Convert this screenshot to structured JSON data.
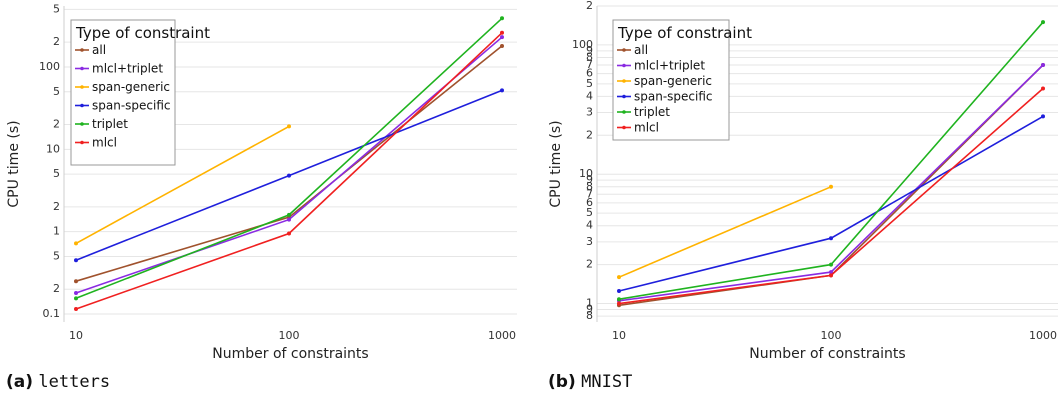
{
  "figure": {
    "caption_a_label": "(a)",
    "caption_a_name": "letters",
    "caption_b_label": "(b)",
    "caption_b_name": "MNIST"
  },
  "chart_data": [
    {
      "type": "line",
      "panel": "a",
      "xscale": "log",
      "yscale": "log",
      "xlabel": "Number of constraints",
      "ylabel": "CPU time (s)",
      "x": [
        10,
        100,
        1000
      ],
      "xticks": [
        "10",
        "100",
        "1000"
      ],
      "ylim": [
        0.08,
        550
      ],
      "yticks": [
        {
          "v": 0.1,
          "l": "0.1"
        },
        {
          "v": 0.2,
          "l": "2"
        },
        {
          "v": 0.5,
          "l": "5"
        },
        {
          "v": 1,
          "l": "1"
        },
        {
          "v": 2,
          "l": "2"
        },
        {
          "v": 5,
          "l": "5"
        },
        {
          "v": 10,
          "l": "10"
        },
        {
          "v": 20,
          "l": "2"
        },
        {
          "v": 50,
          "l": "5"
        },
        {
          "v": 100,
          "l": "100"
        },
        {
          "v": 200,
          "l": "2"
        },
        {
          "v": 500,
          "l": "5"
        }
      ],
      "legend": {
        "title": "Type of constraint",
        "position": "top-left"
      },
      "series": [
        {
          "name": "all",
          "color": "#a0522d",
          "values": [
            0.25,
            1.5,
            180
          ]
        },
        {
          "name": "mlcl+triplet",
          "color": "#8a2be2",
          "values": [
            0.18,
            1.4,
            230
          ]
        },
        {
          "name": "span-generic",
          "color": "#ffb300",
          "values": [
            0.72,
            19,
            null
          ]
        },
        {
          "name": "span-specific",
          "color": "#1f1fdc",
          "values": [
            0.45,
            4.8,
            52
          ]
        },
        {
          "name": "triplet",
          "color": "#1fb31f",
          "values": [
            0.155,
            1.6,
            390
          ]
        },
        {
          "name": "mlcl",
          "color": "#f02020",
          "values": [
            0.115,
            0.95,
            260
          ]
        }
      ]
    },
    {
      "type": "line",
      "panel": "b",
      "xscale": "log",
      "yscale": "log",
      "xlabel": "Number of constraints",
      "ylabel": "CPU time (s)",
      "x": [
        10,
        100,
        1000
      ],
      "xticks": [
        "10",
        "100",
        "1000"
      ],
      "ylim": [
        0.72,
        200
      ],
      "yticks": [
        {
          "v": 0.8,
          "l": "8"
        },
        {
          "v": 0.9,
          "l": "9"
        },
        {
          "v": 1,
          "l": "1"
        },
        {
          "v": 2,
          "l": "2"
        },
        {
          "v": 3,
          "l": "3"
        },
        {
          "v": 4,
          "l": "4"
        },
        {
          "v": 5,
          "l": "5"
        },
        {
          "v": 6,
          "l": "6"
        },
        {
          "v": 7,
          "l": "7"
        },
        {
          "v": 8,
          "l": "8"
        },
        {
          "v": 9,
          "l": "9"
        },
        {
          "v": 10,
          "l": "10"
        },
        {
          "v": 20,
          "l": "2"
        },
        {
          "v": 30,
          "l": "3"
        },
        {
          "v": 40,
          "l": "4"
        },
        {
          "v": 50,
          "l": "5"
        },
        {
          "v": 60,
          "l": "6"
        },
        {
          "v": 70,
          "l": "7"
        },
        {
          "v": 80,
          "l": "8"
        },
        {
          "v": 90,
          "l": "9"
        },
        {
          "v": 100,
          "l": "100"
        },
        {
          "v": 200,
          "l": "2"
        }
      ],
      "legend": {
        "title": "Type of constraint",
        "position": "top-left"
      },
      "series": [
        {
          "name": "all",
          "color": "#a0522d",
          "values": [
            0.97,
            1.65,
            70
          ]
        },
        {
          "name": "mlcl+triplet",
          "color": "#8a2be2",
          "values": [
            1.05,
            1.75,
            70
          ]
        },
        {
          "name": "span-generic",
          "color": "#ffb300",
          "values": [
            1.6,
            8,
            null
          ]
        },
        {
          "name": "span-specific",
          "color": "#1f1fdc",
          "values": [
            1.25,
            3.2,
            28
          ]
        },
        {
          "name": "triplet",
          "color": "#1fb31f",
          "values": [
            1.08,
            2.0,
            150
          ]
        },
        {
          "name": "mlcl",
          "color": "#f02020",
          "values": [
            1.0,
            1.65,
            46
          ]
        }
      ]
    }
  ]
}
